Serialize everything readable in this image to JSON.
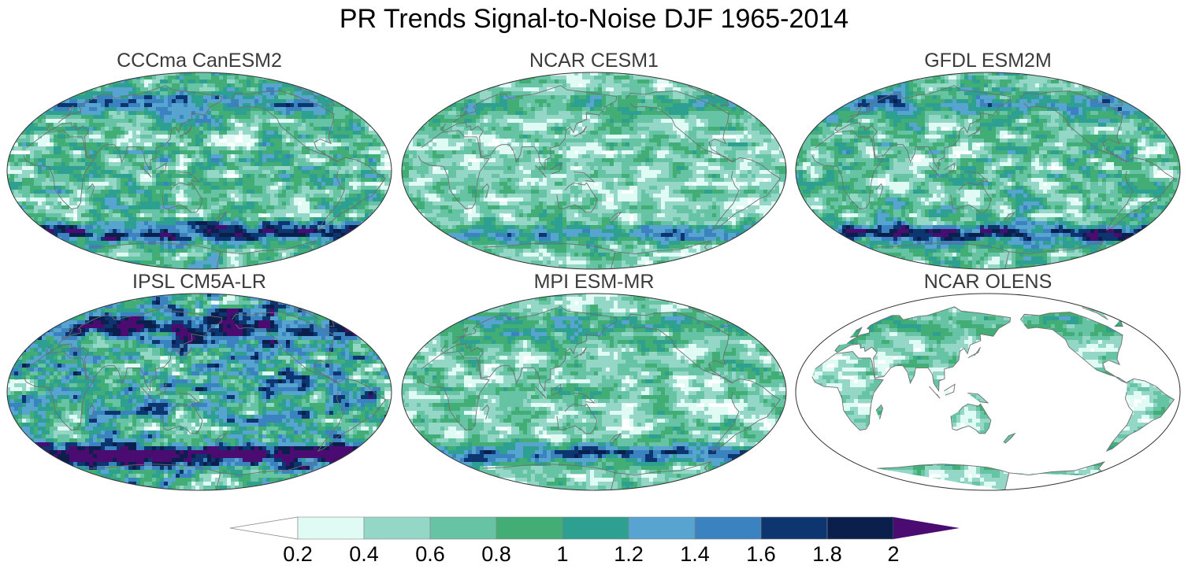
{
  "figure": {
    "title": "PR Trends Signal-to-Noise DJF 1965-2014"
  },
  "panels": [
    {
      "title": "CCCma CanESM2",
      "land_only": false,
      "seed": 11,
      "strength": 1.0
    },
    {
      "title": "NCAR CESM1",
      "land_only": false,
      "seed": 23,
      "strength": 0.75
    },
    {
      "title": "GFDL ESM2M",
      "land_only": false,
      "seed": 37,
      "strength": 0.95
    },
    {
      "title": "IPSL CM5A-LR",
      "land_only": false,
      "seed": 41,
      "strength": 1.35
    },
    {
      "title": "MPI ESM-MR",
      "land_only": false,
      "seed": 53,
      "strength": 0.8
    },
    {
      "title": "NCAR OLENS",
      "land_only": true,
      "seed": 67,
      "strength": 0.7
    }
  ],
  "colorbar": {
    "labels": [
      "0.2",
      "0.4",
      "0.6",
      "0.8",
      "1",
      "1.2",
      "1.4",
      "1.6",
      "1.8",
      "2"
    ],
    "below_color": "#ffffff",
    "colors": [
      "#e0fbf4",
      "#95d7c6",
      "#66c4a4",
      "#42ae75",
      "#2ea091",
      "#56a4cf",
      "#3a82c0",
      "#0d3570",
      "#0a1f4c"
    ],
    "above_color": "#4a0c70"
  },
  "map": {
    "projection": "Robinson (Pacific-centred)",
    "coastline_color": "#6e6e6e",
    "outline_color": "#333333"
  }
}
